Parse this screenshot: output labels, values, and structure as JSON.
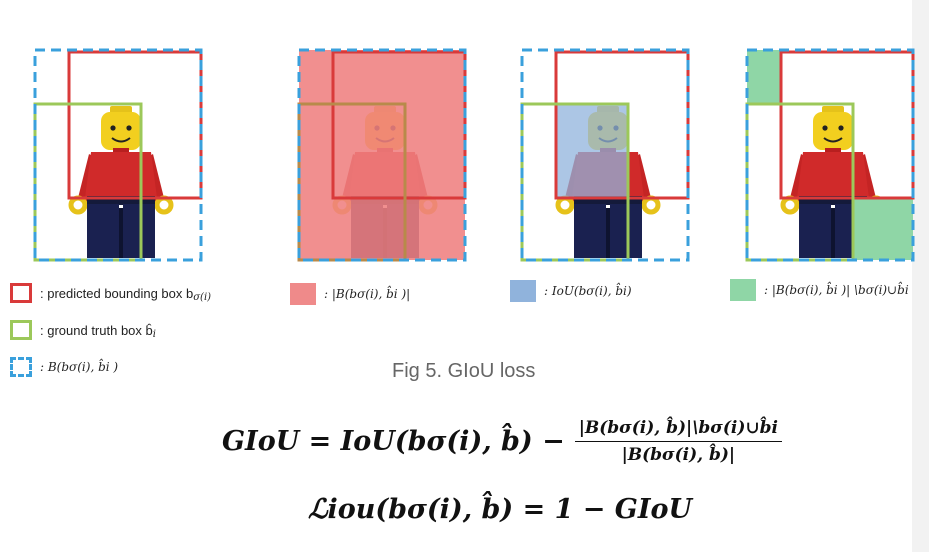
{
  "legend": {
    "predicted": ": predicted bounding box b",
    "predicted_sub": "σ(i)",
    "ground_truth": ": ground truth box b̂",
    "ground_truth_sub": "i",
    "enclosing": ": B(b",
    "enclosing_rest": "σ(i), b̂i )"
  },
  "panel_labels": {
    "p2": ": |B(bσ(i), b̂i )|",
    "p3": ": IoU(bσ(i), b̂i)",
    "p4": ": |B(bσ(i), b̂i )| \\bσ(i)∪b̂i"
  },
  "caption": "Fig 5. GIoU loss",
  "formula": {
    "line1_left": "GIoU = IoU(bσ(i), b̂) −",
    "numerator": "|B(bσ(i), b̂)|\\bσ(i)∪b̂i",
    "denominator": "|B(bσ(i), b̂)|",
    "line2": "ℒiou(bσ(i), b̂) = 1 − GIoU"
  },
  "colors": {
    "predicted": "#d93a3a",
    "ground_truth": "#9cc85a",
    "enclosing": "#3aa0dc",
    "union_fill": "#ef8a8a",
    "iou_fill": "#90b3dc",
    "diff_fill": "#8fd6a6"
  }
}
